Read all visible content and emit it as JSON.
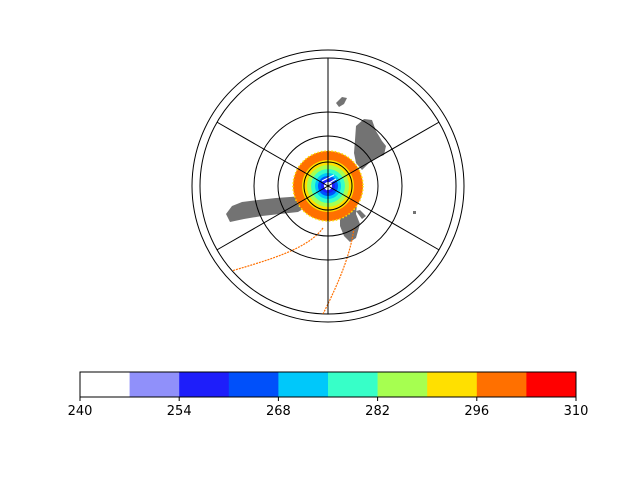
{
  "chart_data": {
    "type": "heatmap",
    "projection": "polar-stereographic",
    "title": "",
    "colormap": {
      "boundaries": [
        240,
        247,
        254,
        261,
        268,
        275,
        282,
        289,
        296,
        303,
        310
      ],
      "colors": [
        "#ffffff",
        "#9090fa",
        "#1e1efa",
        "#0050fa",
        "#00c8fa",
        "#37ffc8",
        "#a6ff50",
        "#ffe000",
        "#ff7000",
        "#ff0000"
      ],
      "tick_values": [
        240,
        254,
        268,
        282,
        296,
        310
      ],
      "tick_labels": [
        "240",
        "254",
        "268",
        "282",
        "296",
        "310"
      ]
    },
    "land_color": "#737373",
    "grid": true,
    "legend_placement": "bottom"
  }
}
